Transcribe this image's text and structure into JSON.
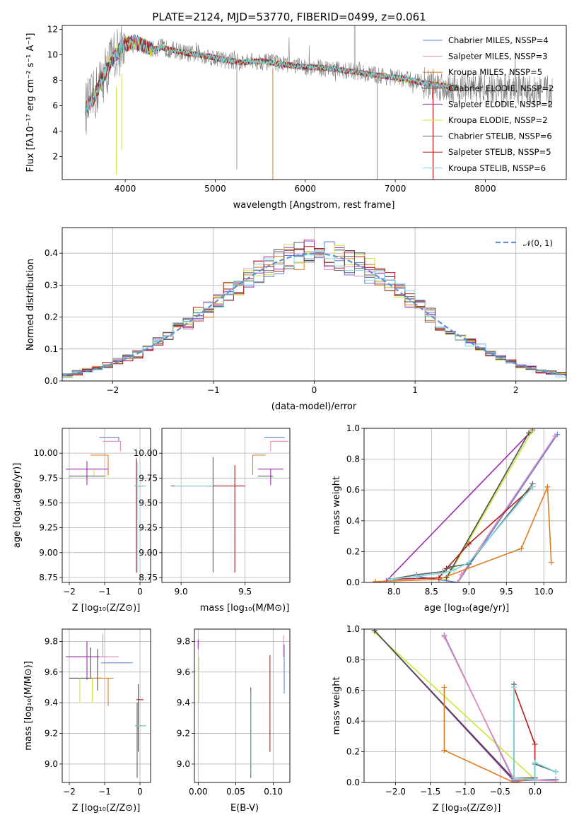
{
  "colors": {
    "Chabrier MILES": "#5b7fd6",
    "Salpeter MILES": "#e88ab8",
    "Kroupa MILES": "#e07b20",
    "Chabrier ELODIE": "#4a4a4a",
    "Salpeter ELODIE": "#9b2db3",
    "Kroupa ELODIE": "#c8e83a",
    "Chabrier STELIB": "#5f5f5f",
    "Salpeter STELIB": "#b51c1c",
    "Kroupa STELIB": "#7fd8dc",
    "data": "#808080",
    "normal": "#5b8fd6"
  },
  "chart_data": [
    {
      "type": "line",
      "title": "PLATE=2124, MJD=53770, FIBERID=0499, z=0.061",
      "xlabel": "wavelength [Angstrom, rest frame]",
      "ylabel": "Flux [fλ10⁻¹⁷ erg cm⁻² s⁻¹ A⁻¹]",
      "xlim": [
        3300,
        8900
      ],
      "ylim": [
        0.2,
        12.3
      ],
      "xticks": [
        4000,
        5000,
        6000,
        7000,
        8000
      ],
      "yticks": [
        2,
        4,
        6,
        8,
        10,
        12
      ],
      "legend_position": "top-right",
      "series": [
        {
          "name": "Chabrier MILES, N_SSP=4",
          "key": "Chabrier MILES"
        },
        {
          "name": "Salpeter MILES, N_SSP=3",
          "key": "Salpeter MILES"
        },
        {
          "name": "Kroupa MILES, N_SSP=5",
          "key": "Kroupa MILES"
        },
        {
          "name": "Chabrier ELODIE, N_SSP=2",
          "key": "Chabrier ELODIE"
        },
        {
          "name": "Salpeter ELODIE, N_SSP=2",
          "key": "Salpeter ELODIE"
        },
        {
          "name": "Kroupa ELODIE, N_SSP=2",
          "key": "Kroupa ELODIE"
        },
        {
          "name": "Chabrier STELIB, N_SSP=6",
          "key": "Chabrier STELIB"
        },
        {
          "name": "Salpeter STELIB, N_SSP=5",
          "key": "Salpeter STELIB"
        },
        {
          "name": "Kroupa STELIB, N_SSP=6",
          "key": "Kroupa STELIB"
        }
      ],
      "model_continuum": {
        "x": [
          3560,
          3650,
          3750,
          3850,
          3950,
          4000,
          4100,
          4200,
          4300,
          4400,
          4500,
          4700,
          4900,
          5100,
          5300,
          5500,
          5700,
          5900,
          6100,
          6300,
          6500,
          6700,
          6900,
          7100,
          7300,
          7500,
          7700
        ],
        "y": [
          5.8,
          6.6,
          8.2,
          9.6,
          10.5,
          10.8,
          11.0,
          10.7,
          10.4,
          10.6,
          10.4,
          10.1,
          9.9,
          9.6,
          9.4,
          9.5,
          9.3,
          9.1,
          9.0,
          8.9,
          8.7,
          8.5,
          8.3,
          8.1,
          7.8,
          7.6,
          7.4
        ]
      },
      "notes": "Observed spectrum (grey, noisy) extends to ~8750 A; model spectra extend to ~7700 A."
    },
    {
      "type": "line",
      "title": "",
      "xlabel": "(data-model)/error",
      "ylabel": "Normed distribution",
      "xlim": [
        -2.5,
        2.5
      ],
      "ylim": [
        0,
        0.48
      ],
      "xticks": [
        -2,
        -1,
        0,
        1,
        2
      ],
      "yticks": [
        0.0,
        0.1,
        0.2,
        0.3,
        0.4
      ],
      "legend_position": "top-right",
      "legend": "𝒩(0, 1)",
      "grid": true,
      "histogram_bin_width": 0.1,
      "normal_pdf": {
        "mean": 0,
        "sigma": 1
      }
    },
    {
      "type": "scatter",
      "xlabel": "Z [log₁₀(Z/Z⊙)]",
      "ylabel": "age  [log₁₀(age/yr)]",
      "xlim": [
        -2.2,
        0.3
      ],
      "ylim": [
        8.7,
        10.25
      ],
      "xticks": [
        -2,
        -1,
        0
      ],
      "yticks": [
        8.75,
        9.0,
        9.25,
        9.5,
        9.75,
        10.0
      ],
      "grid": true,
      "points": [
        {
          "key": "Chabrier MILES",
          "x": -0.6,
          "y": 10.16,
          "xerr": [
            0.55,
            0.0
          ],
          "yerr": [
            0.04,
            0.0
          ]
        },
        {
          "key": "Salpeter MILES",
          "x": -0.55,
          "y": 10.12,
          "xerr": [
            0.5,
            0.0
          ],
          "yerr": [
            0.1,
            0.0
          ]
        },
        {
          "key": "Kroupa MILES",
          "x": -0.9,
          "y": 9.98,
          "xerr": [
            0.5,
            0.0
          ],
          "yerr": [
            0.2,
            0.0
          ]
        },
        {
          "key": "Salpeter ELODIE",
          "x": -1.5,
          "y": 9.84,
          "xerr": [
            0.6,
            0.6
          ],
          "yerr": [
            0.16,
            0.08
          ]
        },
        {
          "key": "Kroupa ELODIE",
          "x": -1.3,
          "y": 9.77,
          "xerr": [
            0.5,
            0.4
          ],
          "yerr": [
            0.0,
            0.06
          ]
        },
        {
          "key": "Chabrier ELODIE",
          "x": -1.4,
          "y": 9.77,
          "xerr": [
            0.6,
            0.4
          ],
          "yerr": [
            0.0,
            0.0
          ]
        },
        {
          "key": "Chabrier STELIB",
          "x": -0.1,
          "y": 9.67,
          "xerr": [
            0.05,
            0.25
          ],
          "yerr": [
            0.87,
            0.28
          ]
        },
        {
          "key": "Salpeter STELIB",
          "x": -0.1,
          "y": 9.67,
          "xerr": [
            0.0,
            0.2
          ],
          "yerr": [
            0.87,
            0.26
          ]
        },
        {
          "key": "Kroupa STELIB",
          "x": -0.08,
          "y": 9.67,
          "xerr": [
            0.05,
            0.25
          ],
          "yerr": [
            0.87,
            0.24
          ]
        }
      ]
    },
    {
      "type": "scatter",
      "xlabel": "mass [log₁₀(M/M⊙)]",
      "ylabel": "",
      "xlim": [
        8.85,
        9.85
      ],
      "ylim": [
        8.7,
        10.25
      ],
      "xticks": [
        9.0,
        9.5
      ],
      "yticks": [
        8.75,
        9.0,
        9.25,
        9.5,
        9.75,
        10.0
      ],
      "grid": true,
      "points": [
        {
          "key": "Chabrier MILES",
          "x": 9.65,
          "y": 10.16,
          "xerr": [
            0.0,
            0.16
          ],
          "yerr": [
            0.0,
            0.0
          ]
        },
        {
          "key": "Salpeter MILES",
          "x": 9.7,
          "y": 10.12,
          "xerr": [
            0.0,
            0.14
          ],
          "yerr": [
            0.1,
            0.0
          ]
        },
        {
          "key": "Kroupa MILES",
          "x": 9.56,
          "y": 9.98,
          "xerr": [
            0.0,
            0.1
          ],
          "yerr": [
            0.2,
            0.0
          ]
        },
        {
          "key": "Salpeter ELODIE",
          "x": 9.7,
          "y": 9.84,
          "xerr": [
            0.1,
            0.1
          ],
          "yerr": [
            0.16,
            0.0
          ]
        },
        {
          "key": "Kroupa ELODIE",
          "x": 9.6,
          "y": 9.77,
          "xerr": [
            0.0,
            0.0
          ],
          "yerr": [
            0.0,
            0.0
          ]
        },
        {
          "key": "Chabrier ELODIE",
          "x": 9.6,
          "y": 9.77,
          "xerr": [
            0.0,
            0.12
          ],
          "yerr": [
            0.0,
            0.0
          ]
        },
        {
          "key": "Chabrier STELIB",
          "x": 9.25,
          "y": 9.67,
          "xerr": [
            0.33,
            0.0
          ],
          "yerr": [
            0.87,
            0.29
          ]
        },
        {
          "key": "Salpeter STELIB",
          "x": 9.25,
          "y": 9.67,
          "xerr": [
            0.05,
            0.25
          ],
          "yerr": [
            0.0,
            0.0
          ]
        },
        {
          "key": "Salpeter STELIB",
          "x": 9.42,
          "y": 9.67,
          "xerr": [
            0.0,
            0.0
          ],
          "yerr": [
            0.87,
            0.21
          ]
        },
        {
          "key": "Kroupa STELIB",
          "x": 9.25,
          "y": 9.67,
          "xerr": [
            0.3,
            0.0
          ],
          "yerr": [
            0.0,
            0.0
          ]
        }
      ]
    },
    {
      "type": "line",
      "xlabel": "age  [log₁₀(age/yr)]",
      "ylabel": "mass weight",
      "xlim": [
        7.6,
        10.3
      ],
      "ylim": [
        0,
        1
      ],
      "xticks": [
        8.0,
        8.5,
        9.0,
        9.5,
        10.0
      ],
      "yticks": [
        0.0,
        0.2,
        0.4,
        0.6,
        0.8,
        1.0
      ],
      "grid": true,
      "series": [
        {
          "key": "Salpeter ELODIE",
          "x": [
            7.9,
            9.85
          ],
          "y": [
            0.01,
            0.99
          ]
        },
        {
          "key": "Kroupa ELODIE",
          "x": [
            8.7,
            9.84
          ],
          "y": [
            0.02,
            0.98
          ]
        },
        {
          "key": "Chabrier ELODIE",
          "x": [
            8.7,
            9.8
          ],
          "y": [
            0.03,
            0.97
          ]
        },
        {
          "key": "Chabrier MILES",
          "x": [
            8.3,
            8.85,
            10.18
          ],
          "y": [
            0.04,
            0.0,
            0.96
          ]
        },
        {
          "key": "Salpeter MILES",
          "x": [
            8.85,
            8.9,
            10.15
          ],
          "y": [
            0.0,
            0.05,
            0.95
          ]
        },
        {
          "key": "Kroupa MILES",
          "x": [
            7.75,
            8.6,
            9.7,
            10.05,
            10.1
          ],
          "y": [
            0.005,
            0.02,
            0.22,
            0.62,
            0.13
          ]
        },
        {
          "key": "Salpeter STELIB",
          "x": [
            7.95,
            8.6,
            8.7,
            9.0,
            9.85
          ],
          "y": [
            0.02,
            0.03,
            0.09,
            0.25,
            0.62
          ]
        },
        {
          "key": "Chabrier STELIB",
          "x": [
            7.95,
            8.3,
            8.65,
            8.75,
            9.0,
            9.85
          ],
          "y": [
            0.02,
            0.05,
            0.07,
            0.1,
            0.12,
            0.64
          ]
        },
        {
          "key": "Kroupa STELIB",
          "x": [
            7.95,
            8.3,
            8.65,
            8.8,
            9.0,
            9.85
          ],
          "y": [
            0.02,
            0.04,
            0.06,
            0.08,
            0.13,
            0.62
          ]
        }
      ]
    },
    {
      "type": "scatter",
      "xlabel": "Z [log₁₀(Z/Z⊙)]",
      "ylabel": "mass [log₁₀(M/M⊙)]",
      "xlim": [
        -2.2,
        0.3
      ],
      "ylim": [
        8.88,
        9.88
      ],
      "xticks": [
        -2,
        -1,
        0
      ],
      "yticks": [
        9.0,
        9.2,
        9.4,
        9.6,
        9.8
      ],
      "grid": true,
      "points": [
        {
          "key": "Salpeter ELODIE",
          "x": -1.5,
          "y": 9.7,
          "xerr": [
            0.6,
            0.6
          ],
          "yerr": [
            0.15,
            0.1
          ]
        },
        {
          "key": "Salpeter MILES",
          "x": -0.6,
          "y": 9.7,
          "xerr": [
            0.55,
            0.0
          ],
          "yerr": [
            0.0,
            0.0
          ]
        },
        {
          "key": "Salpeter MILES",
          "x": -1.05,
          "y": 9.7,
          "xerr": [
            0.0,
            0.0
          ],
          "yerr": [
            0.0,
            0.15
          ]
        },
        {
          "key": "Chabrier MILES",
          "x": -0.6,
          "y": 9.66,
          "xerr": [
            0.5,
            0.4
          ],
          "yerr": [
            0.0,
            0.0
          ]
        },
        {
          "key": "Chabrier ELODIE",
          "x": -1.4,
          "y": 9.56,
          "xerr": [
            0.6,
            0.3
          ],
          "yerr": [
            0.0,
            0.2
          ]
        },
        {
          "key": "Kroupa ELODIE",
          "x": -1.35,
          "y": 9.56,
          "xerr": [
            0.0,
            0.0
          ],
          "yerr": [
            0.16,
            0.0
          ]
        },
        {
          "key": "Kroupa MILES",
          "x": -1.35,
          "y": 9.56,
          "xerr": [
            0.0,
            0.6
          ],
          "yerr": [
            0.0,
            0.0
          ]
        },
        {
          "key": "Kroupa MILES",
          "x": -0.9,
          "y": 9.56,
          "xerr": [
            0.0,
            0.0
          ],
          "yerr": [
            0.18,
            0.0
          ]
        },
        {
          "key": "Kroupa ELODIE",
          "x": -1.7,
          "y": 9.56,
          "xerr": [
            0.0,
            0.0
          ],
          "yerr": [
            0.16,
            0.0
          ]
        },
        {
          "key": "Salpeter STELIB",
          "x": -0.05,
          "y": 9.42,
          "xerr": [
            0.05,
            0.15
          ],
          "yerr": [
            0.34,
            0.1
          ]
        },
        {
          "key": "Chabrier STELIB",
          "x": -0.08,
          "y": 9.25,
          "xerr": [
            0.05,
            0.25
          ],
          "yerr": [
            0.34,
            0.15
          ]
        },
        {
          "key": "Kroupa STELIB",
          "x": -0.05,
          "y": 9.25,
          "xerr": [
            0.05,
            0.22
          ],
          "yerr": [
            0.0,
            0.0
          ]
        },
        {
          "key": "Chabrier ELODIE",
          "x": -1.2,
          "y": 9.6,
          "xerr": [
            0.0,
            0.0
          ],
          "yerr": [
            0.12,
            0.15
          ]
        }
      ]
    },
    {
      "type": "scatter",
      "xlabel": "E(B-V)",
      "ylabel": "",
      "xlim": [
        -0.005,
        0.122
      ],
      "ylim": [
        8.88,
        9.88
      ],
      "xticks": [
        0.0,
        0.05,
        0.1
      ],
      "yticks": [
        9.0,
        9.2,
        9.4,
        9.6,
        9.8
      ],
      "grid": true,
      "points": [
        {
          "key": "Salpeter ELODIE",
          "x": 0.0,
          "y": 9.75,
          "xerr": [
            0,
            0
          ],
          "yerr": [
            0.0,
            0.06
          ]
        },
        {
          "key": "Kroupa ELODIE",
          "x": 0.001,
          "y": 9.56,
          "xerr": [
            0,
            0
          ],
          "yerr": [
            0.16,
            0.14
          ]
        },
        {
          "key": "Chabrier STELIB",
          "x": 0.07,
          "y": 9.25,
          "xerr": [
            0,
            0
          ],
          "yerr": [
            0.34,
            0.25
          ]
        },
        {
          "key": "Kroupa STELIB",
          "x": 0.0705,
          "y": 9.25,
          "xerr": [
            0,
            0
          ],
          "yerr": [
            0.32,
            0.22
          ]
        },
        {
          "key": "Salpeter STELIB",
          "x": 0.0955,
          "y": 9.42,
          "xerr": [
            0,
            0
          ],
          "yerr": [
            0.34,
            0.29
          ]
        },
        {
          "key": "Salpeter MILES",
          "x": 0.1135,
          "y": 9.7,
          "xerr": [
            0,
            0
          ],
          "yerr": [
            0.0,
            0.14
          ]
        },
        {
          "key": "Chabrier MILES",
          "x": 0.1145,
          "y": 9.62,
          "xerr": [
            0,
            0
          ],
          "yerr": [
            0.16,
            0.16
          ]
        }
      ]
    },
    {
      "type": "line",
      "xlabel": "Z [log₁₀(Z/Z⊙)]",
      "ylabel": "mass weight",
      "xlim": [
        -2.45,
        0.45
      ],
      "ylim": [
        0,
        1
      ],
      "xticks": [
        -2.0,
        -1.5,
        -1.0,
        -0.5,
        0.0
      ],
      "yticks": [
        0.0,
        0.2,
        0.4,
        0.6,
        0.8,
        1.0
      ],
      "grid": true,
      "series": [
        {
          "key": "Salpeter ELODIE",
          "x": [
            -2.3,
            -0.3
          ],
          "y": [
            0.99,
            0.01
          ]
        },
        {
          "key": "Kroupa ELODIE",
          "x": [
            -2.3,
            0.0
          ],
          "y": [
            0.98,
            0.02
          ]
        },
        {
          "key": "Chabrier ELODIE",
          "x": [
            -2.3,
            -0.3
          ],
          "y": [
            0.99,
            0.02
          ]
        },
        {
          "key": "Chabrier MILES",
          "x": [
            -1.3,
            -0.3,
            0.3
          ],
          "y": [
            0.96,
            0.01,
            0.02
          ]
        },
        {
          "key": "Salpeter MILES",
          "x": [
            -1.3,
            -0.3,
            0.3
          ],
          "y": [
            0.95,
            0.02,
            0.01
          ]
        },
        {
          "key": "Kroupa MILES",
          "x": [
            -1.3,
            -1.3,
            -0.3,
            0.0
          ],
          "y": [
            0.62,
            0.21,
            0.0,
            0.03
          ]
        },
        {
          "key": "Salpeter STELIB",
          "x": [
            -0.3,
            0.0,
            0.0
          ],
          "y": [
            0.62,
            0.25,
            0.03
          ]
        },
        {
          "key": "Chabrier STELIB",
          "x": [
            -0.3,
            -0.3,
            0.0,
            0.0,
            0.3
          ],
          "y": [
            0.64,
            0.03,
            0.03,
            0.12,
            0.07
          ]
        },
        {
          "key": "Kroupa STELIB",
          "x": [
            -0.3,
            -0.3,
            0.0,
            0.0,
            0.3
          ],
          "y": [
            0.62,
            0.03,
            0.02,
            0.13,
            0.07
          ]
        }
      ]
    }
  ]
}
